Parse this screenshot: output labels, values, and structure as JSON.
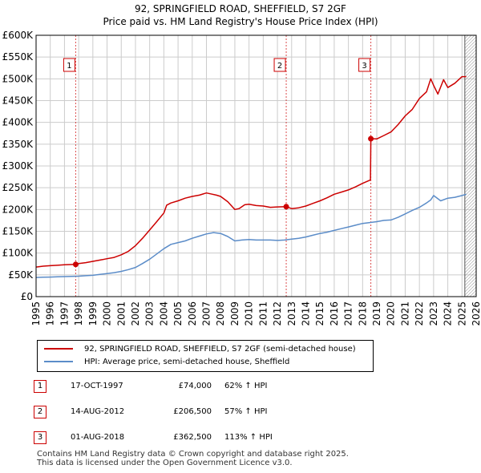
{
  "title": "92, SPRINGFIELD ROAD, SHEFFIELD, S7 2GF",
  "subtitle": "Price paid vs. HM Land Registry's House Price Index (HPI)",
  "colors": {
    "property": "#cc0000",
    "hpi": "#5b8cc8",
    "grid": "#cccccc",
    "marker": "#cc0000"
  },
  "chart_data": {
    "type": "line",
    "xlim": [
      1995,
      2026
    ],
    "ylim": [
      0,
      600000
    ],
    "y_ticks": [
      0,
      50000,
      100000,
      150000,
      200000,
      250000,
      300000,
      350000,
      400000,
      450000,
      500000,
      550000,
      600000
    ],
    "y_tick_labels": [
      "£0",
      "£50K",
      "£100K",
      "£150K",
      "£200K",
      "£250K",
      "£300K",
      "£350K",
      "£400K",
      "£450K",
      "£500K",
      "£550K",
      "£600K"
    ],
    "x_ticks": [
      1995,
      1996,
      1997,
      1998,
      1999,
      2000,
      2001,
      2002,
      2003,
      2004,
      2005,
      2006,
      2007,
      2008,
      2009,
      2010,
      2011,
      2012,
      2013,
      2014,
      2015,
      2016,
      2017,
      2018,
      2019,
      2020,
      2021,
      2022,
      2023,
      2024,
      2025,
      2026
    ],
    "x_tick_labels": [
      "1995",
      "1996",
      "1997",
      "1998",
      "1999",
      "2000",
      "2001",
      "2002",
      "2003",
      "2004",
      "2005",
      "2006",
      "2007",
      "2008",
      "2009",
      "2010",
      "2011",
      "2012",
      "2013",
      "2014",
      "2015",
      "2016",
      "2017",
      "2018",
      "2019",
      "2020",
      "2021",
      "2022",
      "2023",
      "2024",
      "2025",
      "2026"
    ],
    "grid": true,
    "hatched_after": 2025.2,
    "series": [
      {
        "name": "92, SPRINGFIELD ROAD, SHEFFIELD, S7 2GF (semi-detached house)",
        "x": [
          1995,
          1995.5,
          1996,
          1996.5,
          1997,
          1997.79,
          1998,
          1998.5,
          1999,
          1999.5,
          2000,
          2000.5,
          2001,
          2001.5,
          2002,
          2002.5,
          2003,
          2003.5,
          2004,
          2004.2,
          2004.5,
          2005,
          2005.5,
          2006,
          2006.5,
          2007,
          2007.3,
          2007.7,
          2008,
          2008.5,
          2009,
          2009.3,
          2009.7,
          2010,
          2010.5,
          2011,
          2011.5,
          2012,
          2012.62,
          2013,
          2013.5,
          2014,
          2014.5,
          2015,
          2015.5,
          2016,
          2016.5,
          2017,
          2017.5,
          2018,
          2018.55,
          2018.58,
          2019,
          2019.5,
          2020,
          2020.5,
          2021,
          2021.5,
          2022,
          2022.5,
          2022.8,
          2023,
          2023.3,
          2023.7,
          2024,
          2024.5,
          2025,
          2025.3
        ],
        "values": [
          68000,
          70000,
          71000,
          72000,
          73000,
          74000,
          76000,
          78000,
          81000,
          84000,
          87000,
          90000,
          96000,
          104000,
          117000,
          134000,
          153000,
          172000,
          192000,
          210000,
          215000,
          220000,
          226000,
          230000,
          233000,
          238000,
          236000,
          233000,
          230000,
          218000,
          200000,
          202000,
          211000,
          212000,
          209000,
          208000,
          205000,
          206000,
          206500,
          202000,
          204000,
          208000,
          214000,
          220000,
          227000,
          235000,
          240000,
          245000,
          252000,
          260000,
          268000,
          362500,
          362000,
          370000,
          378000,
          395000,
          415000,
          430000,
          455000,
          470000,
          500000,
          485000,
          465000,
          498000,
          480000,
          490000,
          505000,
          505000
        ]
      },
      {
        "name": "HPI: Average price, semi-detached house, Sheffield",
        "x": [
          1995,
          1995.5,
          1996,
          1996.5,
          1997,
          1997.5,
          1998,
          1998.5,
          1999,
          1999.5,
          2000,
          2000.5,
          2001,
          2001.5,
          2002,
          2002.5,
          2003,
          2003.5,
          2004,
          2004.5,
          2005,
          2005.5,
          2006,
          2006.5,
          2007,
          2007.5,
          2008,
          2008.5,
          2009,
          2009.5,
          2010,
          2010.5,
          2011,
          2011.5,
          2012,
          2012.5,
          2013,
          2013.5,
          2014,
          2014.5,
          2015,
          2015.5,
          2016,
          2016.5,
          2017,
          2017.5,
          2018,
          2018.5,
          2019,
          2019.5,
          2020,
          2020.5,
          2021,
          2021.5,
          2022,
          2022.5,
          2022.8,
          2023,
          2023.5,
          2024,
          2024.5,
          2025,
          2025.3
        ],
        "values": [
          44000,
          44500,
          45000,
          45500,
          46000,
          46500,
          47000,
          48000,
          49000,
          51000,
          53000,
          55000,
          58000,
          62000,
          67000,
          76000,
          86000,
          98000,
          110000,
          120000,
          124000,
          128000,
          134000,
          139000,
          144000,
          147000,
          145000,
          138000,
          128000,
          130000,
          131000,
          130000,
          130000,
          130000,
          129000,
          130000,
          132000,
          134000,
          137000,
          141000,
          145000,
          148000,
          152000,
          156000,
          160000,
          164000,
          168000,
          170000,
          172000,
          175000,
          176000,
          182000,
          190000,
          198000,
          205000,
          215000,
          222000,
          232000,
          220000,
          226000,
          228000,
          232000,
          235000
        ]
      }
    ],
    "sales": [
      {
        "label": "1",
        "x": 1997.79,
        "value": 74000
      },
      {
        "label": "2",
        "x": 2012.62,
        "value": 206500
      },
      {
        "label": "3",
        "x": 2018.58,
        "value": 362500
      }
    ]
  },
  "legend": {
    "property": "92, SPRINGFIELD ROAD, SHEFFIELD, S7 2GF (semi-detached house)",
    "hpi": "HPI: Average price, semi-detached house, Sheffield"
  },
  "sales_table": [
    {
      "num": "1",
      "date": "17-OCT-1997",
      "price": "£74,000",
      "change": "62% ↑ HPI"
    },
    {
      "num": "2",
      "date": "14-AUG-2012",
      "price": "£206,500",
      "change": "57% ↑ HPI"
    },
    {
      "num": "3",
      "date": "01-AUG-2018",
      "price": "£362,500",
      "change": "113% ↑ HPI"
    }
  ],
  "footer": {
    "line1": "Contains HM Land Registry data © Crown copyright and database right 2025.",
    "line2": "This data is licensed under the Open Government Licence v3.0."
  }
}
